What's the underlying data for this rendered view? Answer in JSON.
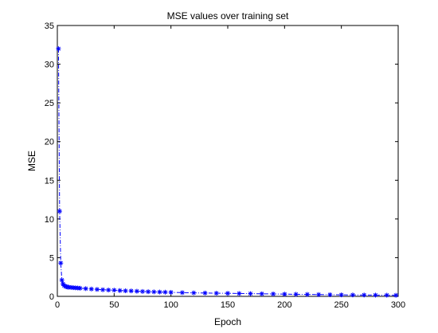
{
  "chart_data": {
    "type": "line",
    "title": "MSE values over training set",
    "xlabel": "Epoch",
    "ylabel": "MSE",
    "xlim": [
      0,
      300
    ],
    "ylim": [
      0,
      35
    ],
    "xticks": [
      0,
      50,
      100,
      150,
      200,
      250,
      300
    ],
    "yticks": [
      0,
      5,
      10,
      15,
      20,
      25,
      30,
      35
    ],
    "grid": false,
    "line_style": "dash-dot",
    "marker": "asterisk",
    "color": "#0000ff",
    "series": [
      {
        "x": [
          1,
          2,
          3,
          4,
          5,
          6,
          7,
          8,
          9,
          10,
          12,
          14,
          16,
          18,
          20,
          25,
          30,
          35,
          40,
          45,
          50,
          55,
          60,
          65,
          70,
          75,
          80,
          85,
          90,
          95,
          100,
          110,
          120,
          130,
          140,
          150,
          160,
          170,
          180,
          190,
          200,
          210,
          220,
          230,
          240,
          250,
          260,
          270,
          280,
          290,
          298
        ],
        "y": [
          32,
          11,
          4.3,
          2.1,
          1.6,
          1.4,
          1.3,
          1.25,
          1.2,
          1.18,
          1.15,
          1.12,
          1.1,
          1.08,
          1.05,
          1.0,
          0.95,
          0.9,
          0.85,
          0.82,
          0.8,
          0.75,
          0.72,
          0.7,
          0.66,
          0.63,
          0.6,
          0.58,
          0.56,
          0.54,
          0.52,
          0.48,
          0.45,
          0.43,
          0.41,
          0.39,
          0.37,
          0.35,
          0.33,
          0.31,
          0.29,
          0.27,
          0.25,
          0.23,
          0.21,
          0.19,
          0.18,
          0.17,
          0.16,
          0.15,
          0.14
        ]
      }
    ]
  }
}
